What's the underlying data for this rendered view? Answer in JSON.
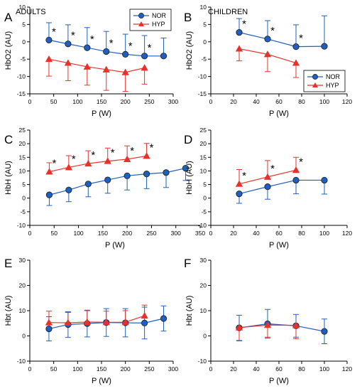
{
  "colors": {
    "NOR": "#1f5fbf",
    "HYP": "#e8312a",
    "marker_edge": "#1a1a1a"
  },
  "chart_data": [
    {
      "panel": "A",
      "title": "ADULTS",
      "type": "line",
      "xlabel": "P (W)",
      "ylabel": "HbO2 (AU)",
      "xlim": [
        0,
        300
      ],
      "ylim": [
        -15,
        10
      ],
      "xticks": [
        0,
        50,
        100,
        150,
        200,
        250,
        300
      ],
      "yticks": [
        -15,
        -10,
        -5,
        0,
        5,
        10
      ],
      "legend": "top-right",
      "legend_entries": [
        "NOR",
        "HYP"
      ],
      "series": [
        {
          "name": "NOR",
          "x": [
            40,
            80,
            120,
            160,
            200,
            240,
            280
          ],
          "y": [
            0.5,
            -0.6,
            -1.7,
            -2.8,
            -3.6,
            -4.1,
            -4.1
          ],
          "err": [
            5,
            5.5,
            5.8,
            5.8,
            5.8,
            5.9,
            5.2
          ],
          "err_dir": "up"
        },
        {
          "name": "HYP",
          "x": [
            40,
            80,
            120,
            160,
            200,
            240
          ],
          "y": [
            -5,
            -6.1,
            -7.2,
            -8,
            -8.8,
            -7.5
          ],
          "err": [
            4.9,
            5.1,
            5.3,
            6,
            5.5,
            4.7
          ],
          "err_dir": "down"
        }
      ],
      "stars": [
        40,
        80,
        120,
        160,
        200,
        240
      ]
    },
    {
      "panel": "B",
      "title": "CHILDREN",
      "type": "line",
      "xlabel": "P (W)",
      "ylabel": "HbO2 (AU)",
      "xlim": [
        0,
        120
      ],
      "ylim": [
        -15,
        10
      ],
      "xticks": [
        0,
        20,
        40,
        60,
        80,
        100,
        120
      ],
      "yticks": [
        -15,
        -10,
        -5,
        0,
        5,
        10
      ],
      "legend": "bottom-right",
      "legend_entries": [
        "NOR",
        "HYP"
      ],
      "series": [
        {
          "name": "NOR",
          "x": [
            25,
            50,
            75,
            100
          ],
          "y": [
            2.7,
            0.8,
            -1.4,
            -1.3
          ],
          "err": [
            4,
            5.3,
            6.3,
            8.8
          ],
          "err_dir": "up"
        },
        {
          "name": "HYP",
          "x": [
            25,
            50,
            75
          ],
          "y": [
            -2,
            -3.6,
            -6.1
          ],
          "err": [
            3.5,
            5,
            4.2
          ],
          "err_dir": "down"
        }
      ],
      "stars": [
        25,
        50,
        75
      ]
    },
    {
      "panel": "C",
      "title": "",
      "type": "line",
      "xlabel": "P (W)",
      "ylabel": "HbH (AU)",
      "xlim": [
        0,
        350
      ],
      "ylim": [
        -10,
        25
      ],
      "xticks": [
        0,
        50,
        100,
        150,
        200,
        250,
        300,
        350
      ],
      "yticks": [
        -10,
        -5,
        0,
        5,
        10,
        15,
        20,
        25
      ],
      "legend": "none",
      "legend_entries": [],
      "series": [
        {
          "name": "NOR",
          "x": [
            40,
            80,
            120,
            160,
            200,
            240,
            280,
            320
          ],
          "y": [
            1.2,
            3,
            5.2,
            6.7,
            8.2,
            8.9,
            9.4,
            11
          ],
          "err": [
            3.9,
            4.3,
            4.7,
            4.9,
            5.2,
            5.4,
            5.5,
            4.5
          ],
          "err_dir": "down"
        },
        {
          "name": "HYP",
          "x": [
            40,
            80,
            120,
            160,
            200,
            240
          ],
          "y": [
            9.7,
            11.3,
            12.7,
            13.6,
            14.3,
            15.5
          ],
          "err": [
            3.3,
            4.3,
            4.7,
            4.8,
            4.9,
            4.6
          ],
          "err_dir": "up"
        }
      ],
      "stars": [
        40,
        80,
        120,
        160,
        200,
        240
      ]
    },
    {
      "panel": "D",
      "title": "",
      "type": "line",
      "xlabel": "P (W)",
      "ylabel": "HbH (AU)",
      "xlim": [
        0,
        120
      ],
      "ylim": [
        -10,
        25
      ],
      "xticks": [
        0,
        20,
        40,
        60,
        80,
        100,
        120
      ],
      "yticks": [
        -10,
        -5,
        0,
        5,
        10,
        15,
        20,
        25
      ],
      "legend": "none",
      "legend_entries": [],
      "series": [
        {
          "name": "NOR",
          "x": [
            25,
            50,
            75,
            100
          ],
          "y": [
            1.6,
            4.2,
            6.6,
            6.6
          ],
          "err": [
            3.5,
            4.6,
            5,
            5.1
          ],
          "err_dir": "down"
        },
        {
          "name": "HYP",
          "x": [
            25,
            50,
            75
          ],
          "y": [
            5.2,
            7.8,
            10.3
          ],
          "err": [
            5.3,
            6,
            4.7
          ],
          "err_dir": "up"
        }
      ],
      "stars": [
        25,
        50,
        75
      ]
    },
    {
      "panel": "E",
      "title": "",
      "type": "line",
      "xlabel": "P (W)",
      "ylabel": "Hbt (AU)",
      "xlim": [
        0,
        300
      ],
      "ylim": [
        -10,
        30
      ],
      "xticks": [
        0,
        50,
        100,
        150,
        200,
        250,
        300
      ],
      "yticks": [
        -10,
        0,
        10,
        20,
        30
      ],
      "legend": "none",
      "legend_entries": [],
      "series": [
        {
          "name": "NOR",
          "x": [
            40,
            80,
            120,
            160,
            200,
            240,
            280
          ],
          "y": [
            2.8,
            4.5,
            4.9,
            5.3,
            5.2,
            5.1,
            6.9
          ],
          "err": [
            4.8,
            5.1,
            5.3,
            5.5,
            5.6,
            6.3,
            5
          ],
          "err_dir": "both"
        },
        {
          "name": "HYP",
          "x": [
            40,
            80,
            120,
            160,
            200,
            240
          ],
          "y": [
            5.3,
            5.2,
            5.5,
            5.4,
            5.4,
            8
          ],
          "err": [
            4.5,
            4.1,
            4.5,
            4.4,
            4.6,
            4.2
          ],
          "err_dir": "up"
        }
      ],
      "stars": []
    },
    {
      "panel": "F",
      "title": "",
      "type": "line",
      "xlabel": "P (W)",
      "ylabel": "Hbt (AU)",
      "xlim": [
        0,
        120
      ],
      "ylim": [
        -10,
        30
      ],
      "xticks": [
        0,
        20,
        40,
        60,
        80,
        100,
        120
      ],
      "yticks": [
        -10,
        0,
        10,
        20,
        30
      ],
      "legend": "none",
      "legend_entries": [],
      "series": [
        {
          "name": "NOR",
          "x": [
            25,
            50,
            75,
            100
          ],
          "y": [
            3.2,
            4.8,
            4,
            1.8
          ],
          "err": [
            5,
            5.7,
            4.5,
            4.9
          ],
          "err_dir": "both"
        },
        {
          "name": "HYP",
          "x": [
            25,
            50,
            75
          ],
          "y": [
            3.3,
            4.3,
            4.2
          ],
          "err": [
            5.3,
            4.8,
            5.3
          ],
          "err_dir": "down"
        }
      ],
      "stars": []
    }
  ]
}
